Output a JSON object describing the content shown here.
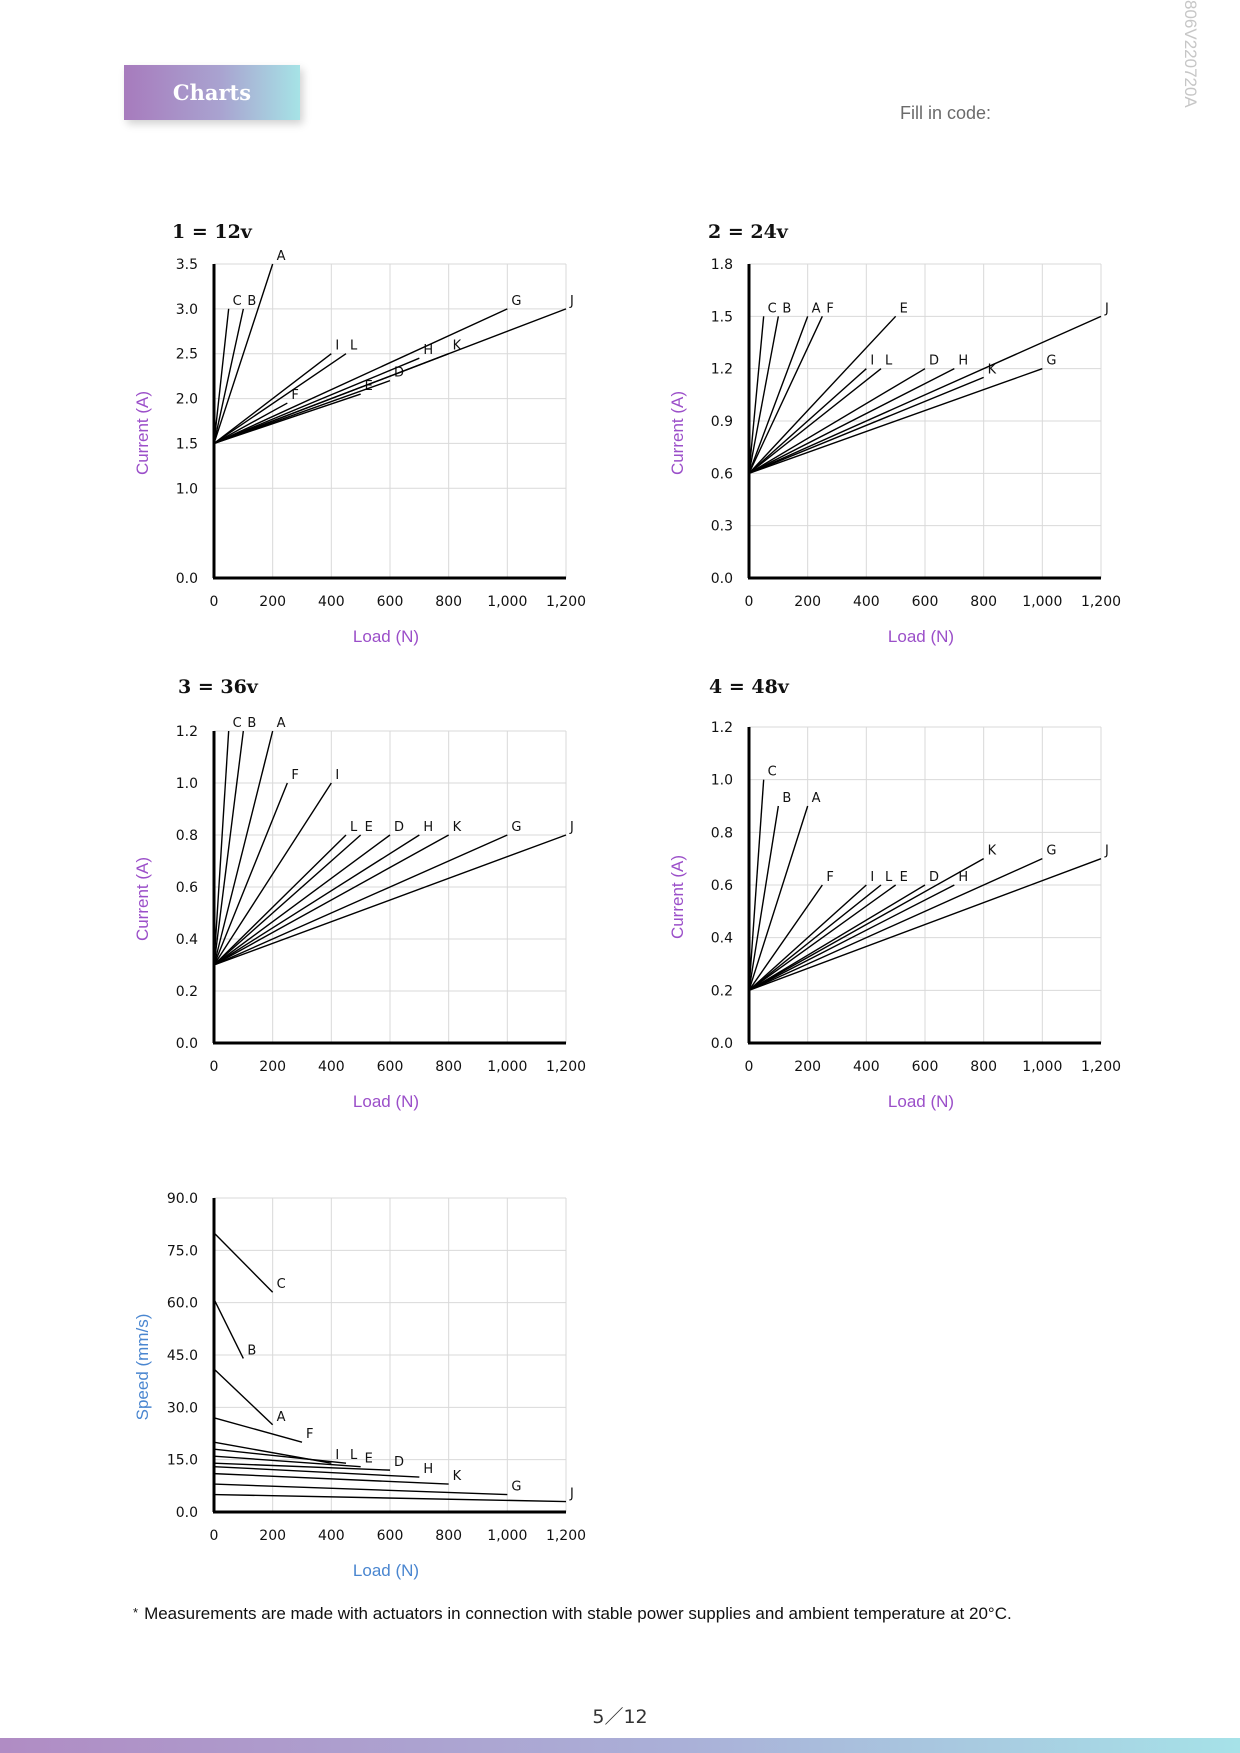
{
  "header": {
    "title": "Charts",
    "fill_in_code_label": "Fill in code:",
    "side_code": "806V220720A"
  },
  "footnote": {
    "marker": "*",
    "text": "Measurements are made with actuators in connection with stable power supplies and ambient temperature at 20°C."
  },
  "page_number": "5／12",
  "chart_data": [
    {
      "type": "line",
      "title": "1 = 12v",
      "xlabel": "Load (N)",
      "ylabel": "Current (A)",
      "xlim": [
        0,
        1200
      ],
      "ylim": [
        0,
        3.5
      ],
      "xticks": [
        0,
        200,
        400,
        600,
        800,
        1000,
        1200
      ],
      "xtick_labels": [
        "0",
        "200",
        "400",
        "600",
        "800",
        "1,000",
        "1,200"
      ],
      "yticks": [
        0,
        1.0,
        1.5,
        2.0,
        2.5,
        3.0,
        3.5
      ],
      "ytick_labels": [
        "0.0",
        "1.0",
        "1.5",
        "2.0",
        "2.5",
        "3.0",
        "3.5"
      ],
      "grid": true,
      "series": [
        {
          "name": "C",
          "x": [
            0,
            50
          ],
          "y": [
            1.5,
            3.0
          ]
        },
        {
          "name": "B",
          "x": [
            0,
            100
          ],
          "y": [
            1.5,
            3.0
          ]
        },
        {
          "name": "A",
          "x": [
            0,
            200
          ],
          "y": [
            1.5,
            3.5
          ]
        },
        {
          "name": "F",
          "x": [
            0,
            250
          ],
          "y": [
            1.5,
            1.95
          ]
        },
        {
          "name": "I",
          "x": [
            0,
            400
          ],
          "y": [
            1.5,
            2.5
          ]
        },
        {
          "name": "L",
          "x": [
            0,
            450
          ],
          "y": [
            1.5,
            2.5
          ]
        },
        {
          "name": "E",
          "x": [
            0,
            500
          ],
          "y": [
            1.5,
            2.05
          ]
        },
        {
          "name": "D",
          "x": [
            0,
            600
          ],
          "y": [
            1.5,
            2.2
          ]
        },
        {
          "name": "H",
          "x": [
            0,
            700
          ],
          "y": [
            1.5,
            2.45
          ]
        },
        {
          "name": "K",
          "x": [
            0,
            800
          ],
          "y": [
            1.5,
            2.5
          ]
        },
        {
          "name": "G",
          "x": [
            0,
            1000
          ],
          "y": [
            1.5,
            3.0
          ]
        },
        {
          "name": "J",
          "x": [
            0,
            1200
          ],
          "y": [
            1.5,
            3.0
          ]
        }
      ]
    },
    {
      "type": "line",
      "title": "2 = 24v",
      "xlabel": "Load (N)",
      "ylabel": "Current (A)",
      "xlim": [
        0,
        1200
      ],
      "ylim": [
        0,
        1.8
      ],
      "xticks": [
        0,
        200,
        400,
        600,
        800,
        1000,
        1200
      ],
      "xtick_labels": [
        "0",
        "200",
        "400",
        "600",
        "800",
        "1,000",
        "1,200"
      ],
      "yticks": [
        0,
        0.3,
        0.6,
        0.9,
        1.2,
        1.5,
        1.8
      ],
      "ytick_labels": [
        "0.0",
        "0.3",
        "0.6",
        "0.9",
        "1.2",
        "1.5",
        "1.8"
      ],
      "grid": true,
      "series": [
        {
          "name": "C",
          "x": [
            0,
            50
          ],
          "y": [
            0.6,
            1.5
          ]
        },
        {
          "name": "B",
          "x": [
            0,
            100
          ],
          "y": [
            0.6,
            1.5
          ]
        },
        {
          "name": "A",
          "x": [
            0,
            200
          ],
          "y": [
            0.6,
            1.5
          ]
        },
        {
          "name": "F",
          "x": [
            0,
            250
          ],
          "y": [
            0.6,
            1.5
          ]
        },
        {
          "name": "E",
          "x": [
            0,
            500
          ],
          "y": [
            0.6,
            1.5
          ]
        },
        {
          "name": "I",
          "x": [
            0,
            400
          ],
          "y": [
            0.6,
            1.2
          ]
        },
        {
          "name": "L",
          "x": [
            0,
            450
          ],
          "y": [
            0.6,
            1.2
          ]
        },
        {
          "name": "D",
          "x": [
            0,
            600
          ],
          "y": [
            0.6,
            1.2
          ]
        },
        {
          "name": "H",
          "x": [
            0,
            700
          ],
          "y": [
            0.6,
            1.2
          ]
        },
        {
          "name": "K",
          "x": [
            0,
            800
          ],
          "y": [
            0.6,
            1.15
          ]
        },
        {
          "name": "G",
          "x": [
            0,
            1000
          ],
          "y": [
            0.6,
            1.2
          ]
        },
        {
          "name": "J",
          "x": [
            0,
            1200
          ],
          "y": [
            0.6,
            1.5
          ]
        }
      ]
    },
    {
      "type": "line",
      "title": "3 = 36v",
      "xlabel": "Load (N)",
      "ylabel": "Current (A)",
      "xlim": [
        0,
        1200
      ],
      "ylim": [
        0,
        1.2
      ],
      "xticks": [
        0,
        200,
        400,
        600,
        800,
        1000,
        1200
      ],
      "xtick_labels": [
        "0",
        "200",
        "400",
        "600",
        "800",
        "1,000",
        "1,200"
      ],
      "yticks": [
        0,
        0.2,
        0.4,
        0.6,
        0.8,
        1.0,
        1.2
      ],
      "ytick_labels": [
        "0.0",
        "0.2",
        "0.4",
        "0.6",
        "0.8",
        "1.0",
        "1.2"
      ],
      "grid": true,
      "series": [
        {
          "name": "C",
          "x": [
            0,
            50
          ],
          "y": [
            0.3,
            1.2
          ]
        },
        {
          "name": "B",
          "x": [
            0,
            100
          ],
          "y": [
            0.3,
            1.2
          ]
        },
        {
          "name": "A",
          "x": [
            0,
            200
          ],
          "y": [
            0.3,
            1.2
          ]
        },
        {
          "name": "F",
          "x": [
            0,
            250
          ],
          "y": [
            0.3,
            1.0
          ]
        },
        {
          "name": "I",
          "x": [
            0,
            400
          ],
          "y": [
            0.3,
            1.0
          ]
        },
        {
          "name": "L",
          "x": [
            0,
            450
          ],
          "y": [
            0.3,
            0.8
          ]
        },
        {
          "name": "E",
          "x": [
            0,
            500
          ],
          "y": [
            0.3,
            0.8
          ]
        },
        {
          "name": "D",
          "x": [
            0,
            600
          ],
          "y": [
            0.3,
            0.8
          ]
        },
        {
          "name": "H",
          "x": [
            0,
            700
          ],
          "y": [
            0.3,
            0.8
          ]
        },
        {
          "name": "K",
          "x": [
            0,
            800
          ],
          "y": [
            0.3,
            0.8
          ]
        },
        {
          "name": "G",
          "x": [
            0,
            1000
          ],
          "y": [
            0.3,
            0.8
          ]
        },
        {
          "name": "J",
          "x": [
            0,
            1200
          ],
          "y": [
            0.3,
            0.8
          ]
        }
      ]
    },
    {
      "type": "line",
      "title": "4 = 48v",
      "xlabel": "Load (N)",
      "ylabel": "Current (A)",
      "xlim": [
        0,
        1200
      ],
      "ylim": [
        0,
        1.2
      ],
      "xticks": [
        0,
        200,
        400,
        600,
        800,
        1000,
        1200
      ],
      "xtick_labels": [
        "0",
        "200",
        "400",
        "600",
        "800",
        "1,000",
        "1,200"
      ],
      "yticks": [
        0,
        0.2,
        0.4,
        0.6,
        0.8,
        1.0,
        1.2
      ],
      "ytick_labels": [
        "0.0",
        "0.2",
        "0.4",
        "0.6",
        "0.8",
        "1.0",
        "1.2"
      ],
      "grid": true,
      "series": [
        {
          "name": "C",
          "x": [
            0,
            50
          ],
          "y": [
            0.2,
            1.0
          ]
        },
        {
          "name": "B",
          "x": [
            0,
            100
          ],
          "y": [
            0.2,
            0.9
          ]
        },
        {
          "name": "A",
          "x": [
            0,
            200
          ],
          "y": [
            0.2,
            0.9
          ]
        },
        {
          "name": "F",
          "x": [
            0,
            250
          ],
          "y": [
            0.2,
            0.6
          ]
        },
        {
          "name": "I",
          "x": [
            0,
            400
          ],
          "y": [
            0.2,
            0.6
          ]
        },
        {
          "name": "L",
          "x": [
            0,
            450
          ],
          "y": [
            0.2,
            0.6
          ]
        },
        {
          "name": "E",
          "x": [
            0,
            500
          ],
          "y": [
            0.2,
            0.6
          ]
        },
        {
          "name": "D",
          "x": [
            0,
            600
          ],
          "y": [
            0.2,
            0.6
          ]
        },
        {
          "name": "H",
          "x": [
            0,
            700
          ],
          "y": [
            0.2,
            0.6
          ]
        },
        {
          "name": "K",
          "x": [
            0,
            800
          ],
          "y": [
            0.2,
            0.7
          ]
        },
        {
          "name": "G",
          "x": [
            0,
            1000
          ],
          "y": [
            0.2,
            0.7
          ]
        },
        {
          "name": "J",
          "x": [
            0,
            1200
          ],
          "y": [
            0.2,
            0.7
          ]
        }
      ]
    },
    {
      "type": "line",
      "title": "",
      "xlabel": "Load (N)",
      "ylabel": "Speed (mm/s)",
      "xlim": [
        0,
        1200
      ],
      "ylim": [
        0,
        90
      ],
      "xticks": [
        0,
        200,
        400,
        600,
        800,
        1000,
        1200
      ],
      "xtick_labels": [
        "0",
        "200",
        "400",
        "600",
        "800",
        "1,000",
        "1,200"
      ],
      "yticks": [
        0,
        15,
        30,
        45,
        60,
        75,
        90
      ],
      "ytick_labels": [
        "0.0",
        "15.0",
        "30.0",
        "45.0",
        "60.0",
        "75.0",
        "90.0"
      ],
      "grid": true,
      "series": [
        {
          "name": "C",
          "x": [
            0,
            200
          ],
          "y": [
            80,
            63
          ]
        },
        {
          "name": "B",
          "x": [
            0,
            100
          ],
          "y": [
            61,
            44
          ]
        },
        {
          "name": "A",
          "x": [
            0,
            200
          ],
          "y": [
            41,
            25
          ]
        },
        {
          "name": "F",
          "x": [
            0,
            300
          ],
          "y": [
            27,
            20
          ]
        },
        {
          "name": "I",
          "x": [
            0,
            400
          ],
          "y": [
            20,
            14
          ]
        },
        {
          "name": "L",
          "x": [
            0,
            450
          ],
          "y": [
            18,
            14
          ]
        },
        {
          "name": "E",
          "x": [
            0,
            500
          ],
          "y": [
            16,
            13
          ]
        },
        {
          "name": "D",
          "x": [
            0,
            600
          ],
          "y": [
            14,
            12
          ]
        },
        {
          "name": "H",
          "x": [
            0,
            700
          ],
          "y": [
            13,
            10
          ]
        },
        {
          "name": "K",
          "x": [
            0,
            800
          ],
          "y": [
            11,
            8
          ]
        },
        {
          "name": "G",
          "x": [
            0,
            1000
          ],
          "y": [
            8,
            5
          ]
        },
        {
          "name": "J",
          "x": [
            0,
            1200
          ],
          "y": [
            5,
            3
          ]
        }
      ]
    }
  ],
  "colors": {
    "axis_label_current": "#9b4fc9",
    "axis_label_speed": "#4a86d0",
    "grid": "#d9d9d9",
    "line": "#000000"
  }
}
